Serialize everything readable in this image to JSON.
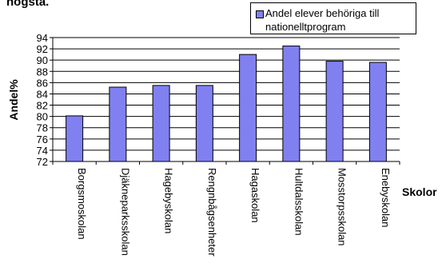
{
  "title_fragment": "högsta.",
  "legend": {
    "label": "Andel elever behöriga till nationelltprogram"
  },
  "colors": {
    "bar": "#8080f0",
    "bar_stroke": "#000000",
    "grid": "#000000",
    "plot_bg": "#ffffff"
  },
  "chart_data": {
    "type": "bar",
    "title": "",
    "xlabel": "Skolor",
    "ylabel": "Andel%",
    "ylim": [
      72,
      94
    ],
    "yticks": [
      72,
      74,
      76,
      78,
      80,
      82,
      84,
      86,
      88,
      90,
      92,
      94
    ],
    "grid": true,
    "legend_position": "top-right",
    "categories": [
      "Borgsmoskolan",
      "Djäkneparksskolan",
      "Hagebyskolan",
      "Rengnbågsenheter",
      "Hagaskolan",
      "Hultdalsskolan",
      "Mosstorpsskolan",
      "Enebyskolan"
    ],
    "series": [
      {
        "name": "Andel elever behöriga till nationelltprogram",
        "values": [
          80.1,
          85.2,
          85.5,
          85.5,
          91.0,
          92.5,
          89.8,
          89.6
        ]
      }
    ]
  }
}
